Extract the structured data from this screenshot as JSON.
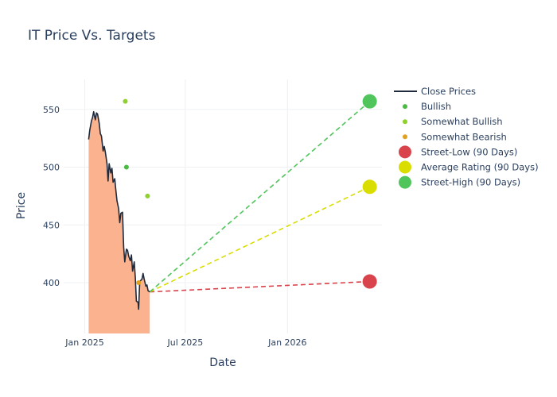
{
  "chart_data": {
    "type": "line",
    "title": "IT Price Vs. Targets",
    "xlabel": "Date",
    "ylabel": "Price",
    "xlim": [
      "2024-11-24",
      "2026-06-20"
    ],
    "ylim": [
      356,
      576
    ],
    "x_ticks": [
      {
        "date": "2025-01-01",
        "label": "Jan 2025"
      },
      {
        "date": "2025-07-01",
        "label": "Jul 2025"
      },
      {
        "date": "2026-01-01",
        "label": "Jan 2026"
      }
    ],
    "y_ticks": [
      400,
      450,
      500,
      550
    ],
    "grid": true,
    "legend_position": "top-right",
    "close_prices": {
      "name": "Close Prices",
      "color": "#1f2a3c",
      "fill_color": "#fbb38f",
      "points": [
        [
          "2025-01-08",
          524
        ],
        [
          "2025-01-10",
          532
        ],
        [
          "2025-01-13",
          540
        ],
        [
          "2025-01-15",
          543
        ],
        [
          "2025-01-17",
          548
        ],
        [
          "2025-01-20",
          541
        ],
        [
          "2025-01-22",
          547
        ],
        [
          "2025-01-24",
          546
        ],
        [
          "2025-01-27",
          538
        ],
        [
          "2025-01-29",
          529
        ],
        [
          "2025-01-31",
          527
        ],
        [
          "2025-02-03",
          514
        ],
        [
          "2025-02-05",
          518
        ],
        [
          "2025-02-07",
          513
        ],
        [
          "2025-02-10",
          503
        ],
        [
          "2025-02-12",
          488
        ],
        [
          "2025-02-14",
          503
        ],
        [
          "2025-02-17",
          495
        ],
        [
          "2025-02-19",
          499
        ],
        [
          "2025-02-21",
          487
        ],
        [
          "2025-02-24",
          490
        ],
        [
          "2025-02-26",
          480
        ],
        [
          "2025-02-28",
          471
        ],
        [
          "2025-03-03",
          464
        ],
        [
          "2025-03-05",
          452
        ],
        [
          "2025-03-07",
          460
        ],
        [
          "2025-03-10",
          461
        ],
        [
          "2025-03-12",
          431
        ],
        [
          "2025-03-14",
          418
        ],
        [
          "2025-03-17",
          429
        ],
        [
          "2025-03-19",
          428
        ],
        [
          "2025-03-21",
          423
        ],
        [
          "2025-03-24",
          419
        ],
        [
          "2025-03-26",
          424
        ],
        [
          "2025-03-28",
          410
        ],
        [
          "2025-03-31",
          418
        ],
        [
          "2025-04-02",
          404
        ],
        [
          "2025-04-04",
          384
        ],
        [
          "2025-04-07",
          383
        ],
        [
          "2025-04-08",
          377
        ],
        [
          "2025-04-10",
          401
        ],
        [
          "2025-04-14",
          403
        ],
        [
          "2025-04-16",
          408
        ],
        [
          "2025-04-18",
          403
        ],
        [
          "2025-04-21",
          397
        ],
        [
          "2025-04-23",
          398
        ],
        [
          "2025-04-25",
          393
        ],
        [
          "2025-04-28",
          392
        ]
      ]
    },
    "analyst_ratings": [
      {
        "name": "Bullish",
        "color": "#4cb944",
        "points": [
          [
            "2025-03-17",
            500
          ]
        ]
      },
      {
        "name": "Somewhat Bullish",
        "color": "#8ed12a",
        "points": [
          [
            "2025-03-15",
            557
          ],
          [
            "2025-04-24",
            475
          ]
        ]
      },
      {
        "name": "Somewhat Bearish",
        "color": "#e0a122",
        "points": [
          [
            "2025-04-08",
            400
          ]
        ]
      }
    ],
    "targets": {
      "start": [
        "2025-04-28",
        392
      ],
      "end_date": "2026-05-29",
      "series": [
        {
          "name": "Street-Low (90 Days)",
          "value": 401,
          "color": "#d9434b"
        },
        {
          "name": "Average Rating (90 Days)",
          "value": 483,
          "color": "#d9dd00"
        },
        {
          "name": "Street-High (90 Days)",
          "value": 557,
          "color": "#4fc55c"
        }
      ]
    }
  }
}
